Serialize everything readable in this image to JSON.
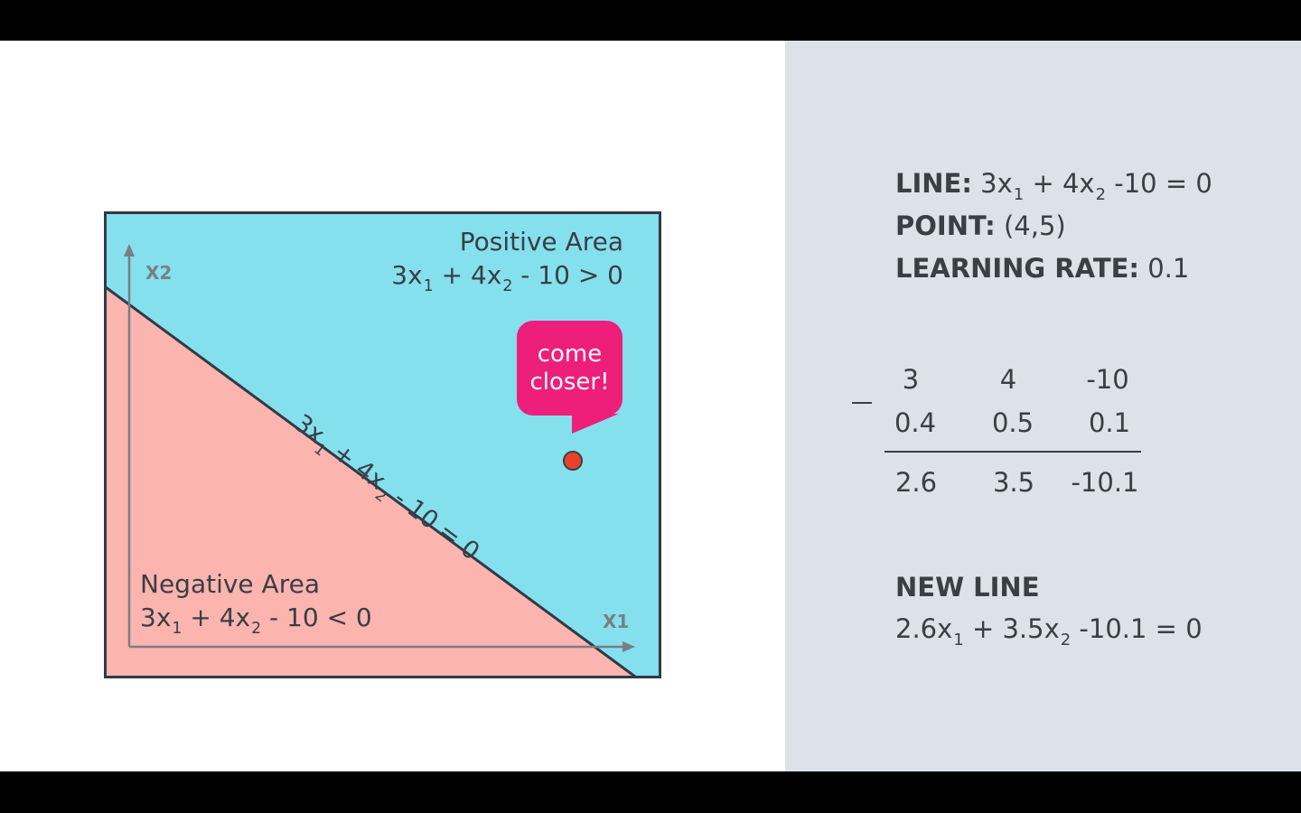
{
  "diagram": {
    "axes": {
      "x": "X1",
      "y": "X2"
    },
    "positive_area": {
      "title": "Positive Area",
      "eq": [
        "3x",
        "1",
        " + 4x",
        "2",
        " - 10 > 0"
      ]
    },
    "negative_area": {
      "title": "Negative Area",
      "eq": [
        "3x",
        "1",
        " + 4x",
        "2",
        " - 10 < 0"
      ]
    },
    "line_label": [
      "3x",
      "1",
      " + 4x",
      "2",
      " - 10 = 0"
    ],
    "bubble": {
      "line1": "come",
      "line2": "closer!"
    },
    "colors": {
      "positive": "#85e0ee",
      "negative": "#fcb4ae",
      "bubble": "#ee1e7b",
      "point": "#e8422c",
      "ink": "#3a3e45"
    }
  },
  "panel": {
    "line": {
      "label": "LINE:",
      "eq": [
        " 3x",
        "1",
        " + 4x",
        "2",
        " -10 = 0"
      ]
    },
    "point": {
      "label": "POINT:",
      "value": " (4,5)"
    },
    "rate": {
      "label": "LEARNING RATE:",
      "value": " 0.1"
    },
    "calc": {
      "row1": [
        "3",
        "4",
        "-10"
      ],
      "row2": [
        "0.4",
        "0.5",
        "0.1"
      ],
      "result": [
        "2.6",
        "3.5",
        "-10.1"
      ]
    },
    "new_line": {
      "title": "NEW LINE",
      "eq": [
        "2.6x",
        "1",
        " + 3.5x",
        "2",
        " -10.1 = 0"
      ]
    }
  }
}
